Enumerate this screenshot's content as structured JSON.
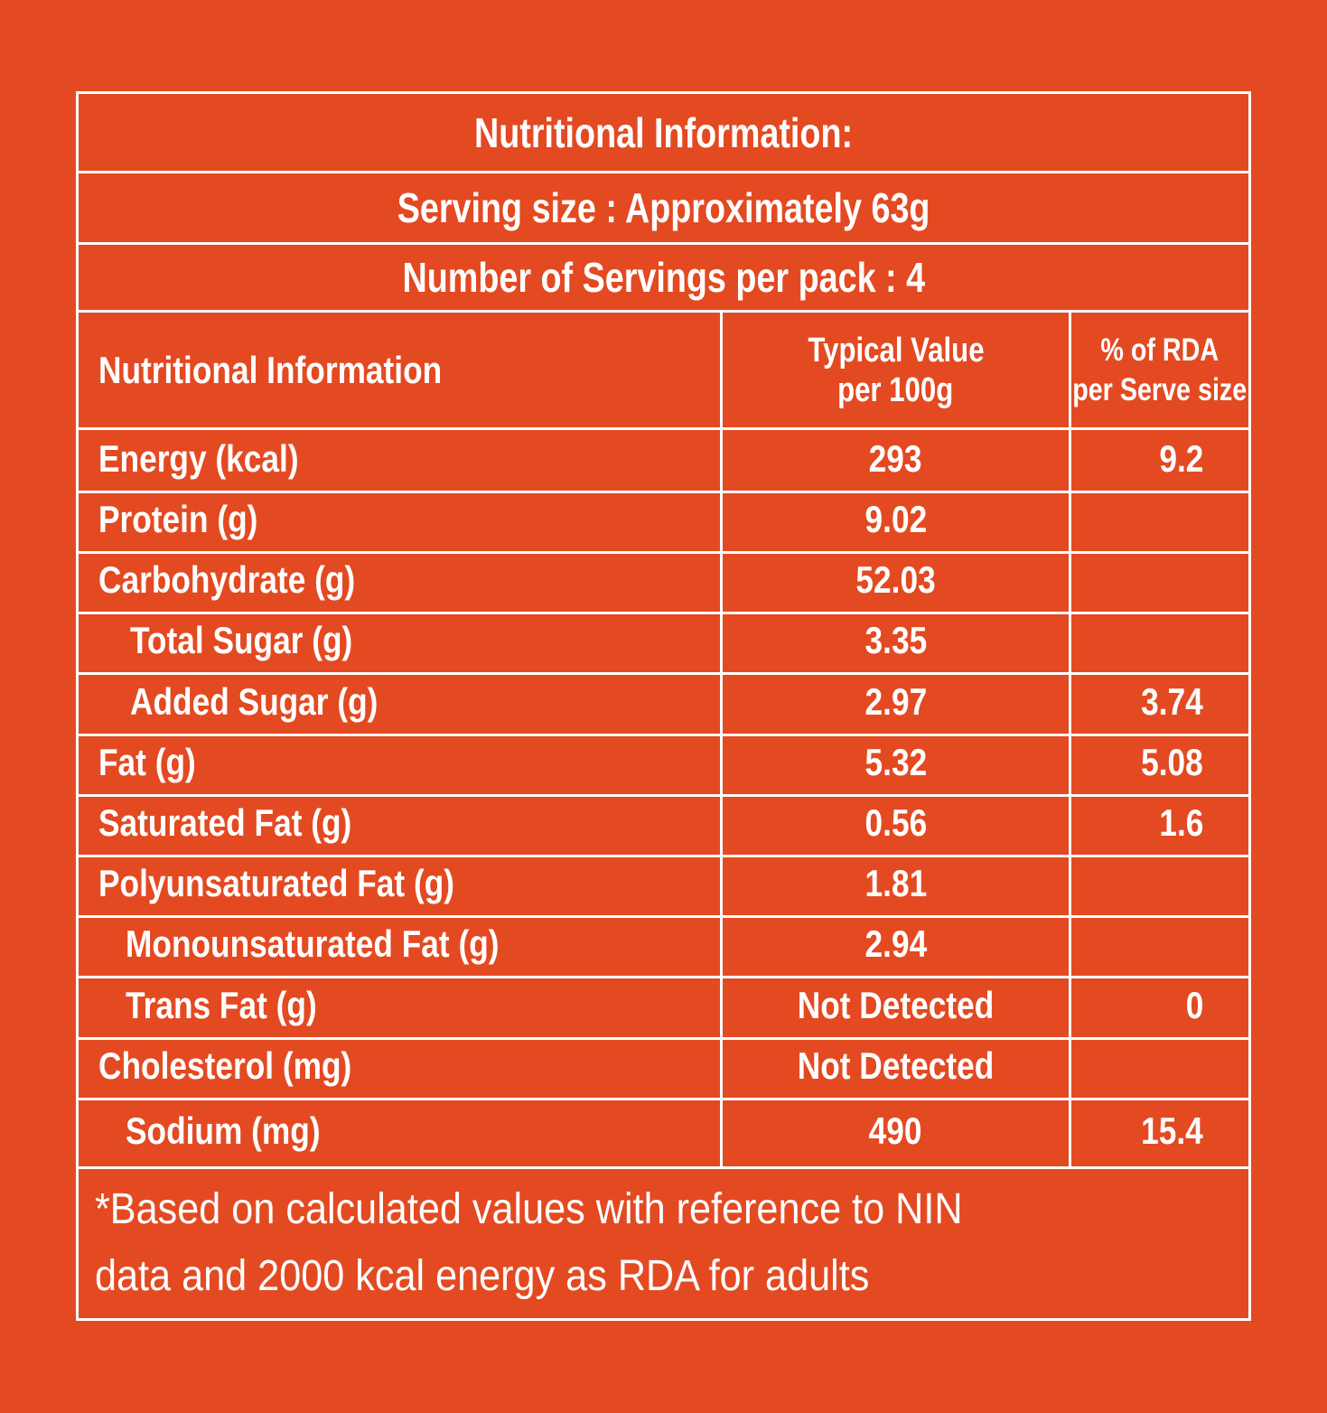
{
  "header": {
    "title": "Nutritional Information:",
    "serving_size": "Serving size : Approximately 63g",
    "servings_per_pack": "Number of Servings per pack : 4"
  },
  "columns": {
    "name": "Nutritional Information",
    "typical_line1": "Typical Value",
    "typical_line2": "per 100g",
    "rda_line1": "% of RDA",
    "rda_line2": "per Serve size"
  },
  "rows": [
    {
      "name": "Energy (kcal)",
      "value": "293",
      "rda": "9.2"
    },
    {
      "name": "Protein (g)",
      "value": "9.02",
      "rda": ""
    },
    {
      "name": "Carbohydrate (g)",
      "value": "52.03",
      "rda": ""
    },
    {
      "name": "Total Sugar (g)",
      "value": "3.35",
      "rda": ""
    },
    {
      "name": "Added Sugar (g)",
      "value": "2.97",
      "rda": "3.74"
    },
    {
      "name": "Fat (g)",
      "value": "5.32",
      "rda": "5.08"
    },
    {
      "name": "Saturated Fat (g)",
      "value": "0.56",
      "rda": "1.6"
    },
    {
      "name": "Polyunsaturated Fat (g)",
      "value": "1.81",
      "rda": ""
    },
    {
      "name": "Monounsaturated Fat (g)",
      "value": "2.94",
      "rda": ""
    },
    {
      "name": "Trans Fat (g)",
      "value": "Not Detected",
      "rda": "0"
    },
    {
      "name": "Cholesterol (mg)",
      "value": "Not Detected",
      "rda": ""
    },
    {
      "name": "Sodium (mg)",
      "value": "490",
      "rda": "15.4"
    }
  ],
  "footnote": {
    "line1": "*Based on calculated values with reference to NIN",
    "line2": "data and 2000 kcal energy as RDA for adults"
  },
  "colors": {
    "background": "#e34a22",
    "foreground": "#ffffff"
  }
}
